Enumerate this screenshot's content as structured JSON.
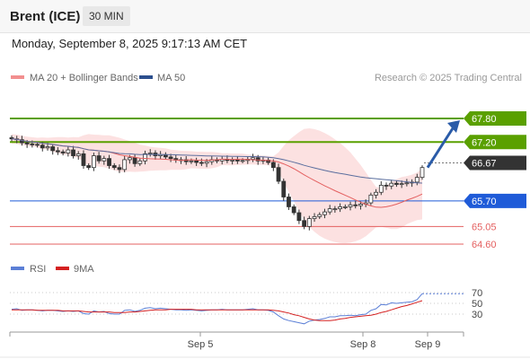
{
  "header": {
    "title": "Brent (ICE)",
    "interval": "30 MIN"
  },
  "timestamp": "Monday, September 8, 2025 9:17:13 AM CET",
  "legend": {
    "ma20_bb": "MA 20 + Bollinger Bands",
    "ma50": "MA 50",
    "credit": "Research © 2025 Trading Central"
  },
  "colors": {
    "resistance": "#5aa000",
    "current": "#333333",
    "pivot": "#1f5bd8",
    "support": "#e46060",
    "ma20": "#e46060",
    "bollinger_fill": "#fbdcdc",
    "ma50": "#5a6e9e",
    "arrow": "#2a5ba8",
    "rsi": "#5b7fd6",
    "rsi_ma": "#d42020"
  },
  "chart_data": [
    {
      "type": "candlestick",
      "levels": [
        {
          "value": 67.8,
          "label": "67.80",
          "kind": "resistance"
        },
        {
          "value": 67.2,
          "label": "67.20",
          "kind": "resistance"
        },
        {
          "value": 66.67,
          "label": "66.67",
          "kind": "current"
        },
        {
          "value": 65.7,
          "label": "65.70",
          "kind": "pivot"
        },
        {
          "value": 65.05,
          "label": "65.05",
          "kind": "support"
        },
        {
          "value": 64.6,
          "label": "64.60",
          "kind": "support"
        }
      ],
      "x_ticks": [
        "Sep 5",
        "Sep 8",
        "Sep 9"
      ],
      "close": [
        67.28,
        67.26,
        67.18,
        67.15,
        67.14,
        67.12,
        67.05,
        67.08,
        66.98,
        66.95,
        66.92,
        67.0,
        66.85,
        66.9,
        66.6,
        66.55,
        66.85,
        66.72,
        66.78,
        66.6,
        66.55,
        66.5,
        66.75,
        66.8,
        66.65,
        66.72,
        66.9,
        66.92,
        66.85,
        66.88,
        66.82,
        66.78,
        66.74,
        66.75,
        66.7,
        66.72,
        66.68,
        66.66,
        66.7,
        66.75,
        66.72,
        66.76,
        66.73,
        66.74,
        66.72,
        66.73,
        66.76,
        66.8,
        66.72,
        66.74,
        66.68,
        66.55,
        66.2,
        65.8,
        65.55,
        65.4,
        65.2,
        65.05,
        65.25,
        65.3,
        65.35,
        65.42,
        65.5,
        65.5,
        65.55,
        65.55,
        65.6,
        65.58,
        65.62,
        65.65,
        65.85,
        65.92,
        66.1,
        66.08,
        66.15,
        66.12,
        66.14,
        66.16,
        66.18,
        66.3,
        66.55
      ],
      "ylim": [
        64.3,
        68.4
      ]
    },
    {
      "type": "line",
      "series": [
        {
          "name": "RSI",
          "values": [
            39,
            40,
            37,
            38,
            38,
            37,
            36,
            37,
            37,
            36,
            35,
            36,
            35,
            36,
            31,
            30,
            36,
            34,
            35,
            31,
            30,
            30,
            37,
            38,
            35,
            37,
            41,
            42,
            40,
            41,
            40,
            39,
            38,
            38,
            37,
            38,
            37,
            36,
            37,
            38,
            38,
            39,
            38,
            38,
            38,
            38,
            39,
            40,
            38,
            38,
            37,
            34,
            27,
            21,
            18,
            16,
            14,
            12,
            17,
            19,
            20,
            22,
            25,
            25,
            27,
            27,
            28,
            27,
            29,
            30,
            37,
            40,
            48,
            47,
            51,
            50,
            51,
            52,
            53,
            57,
            68
          ]
        },
        {
          "name": "9MA",
          "values": [
            38,
            38,
            38,
            38,
            38,
            37,
            37,
            37,
            37,
            37,
            36,
            36,
            36,
            36,
            35,
            34,
            34,
            34,
            34,
            34,
            33,
            33,
            33,
            34,
            34,
            35,
            36,
            37,
            38,
            38,
            38,
            39,
            39,
            39,
            39,
            39,
            38,
            38,
            38,
            38,
            38,
            38,
            38,
            38,
            38,
            38,
            38,
            38,
            38,
            38,
            38,
            37,
            36,
            34,
            32,
            29,
            27,
            24,
            21,
            19,
            18,
            18,
            18,
            19,
            21,
            22,
            24,
            25,
            26,
            27,
            28,
            30,
            33,
            35,
            38,
            41,
            44,
            46,
            49,
            52,
            55
          ]
        }
      ],
      "y_ticks": [
        "70",
        "50",
        "30"
      ],
      "ylim": [
        0,
        100
      ]
    }
  ]
}
